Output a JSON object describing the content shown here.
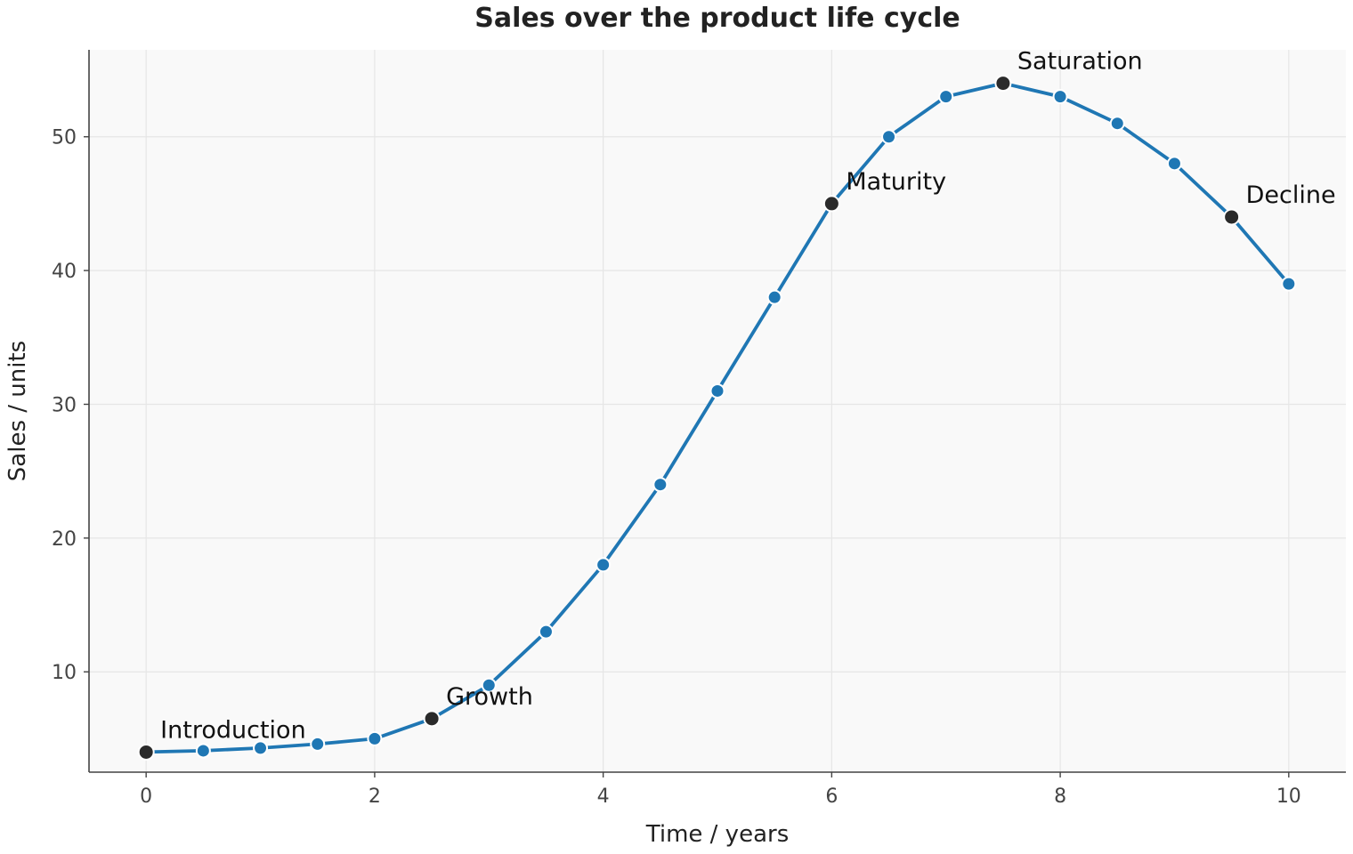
{
  "chart_data": {
    "type": "line",
    "title": "Sales over the product life cycle",
    "xlabel": "Time / years",
    "ylabel": "Sales / units",
    "xlim": [
      -0.5,
      10.5
    ],
    "ylim": [
      2.5,
      56.5
    ],
    "xticks": [
      0,
      2,
      4,
      6,
      8,
      10
    ],
    "yticks": [
      10,
      20,
      30,
      40,
      50
    ],
    "grid": true,
    "line_color": "#1f77b4",
    "highlight_color": "#2b2b2b",
    "series": [
      {
        "x": [
          0,
          0.5,
          1,
          1.5,
          2,
          2.5,
          3,
          3.5,
          4,
          4.5,
          5,
          5.5,
          6,
          6.5,
          7,
          7.5,
          8,
          8.5,
          9,
          9.5,
          10
        ],
        "y": [
          4.0,
          4.1,
          4.3,
          4.6,
          5.0,
          6.5,
          9.0,
          13.0,
          18.0,
          24.0,
          31.0,
          38.0,
          45.0,
          50.0,
          53.0,
          54.0,
          53.0,
          51.0,
          48.0,
          44.0,
          39.0
        ]
      }
    ],
    "annotations": [
      {
        "label": "Introduction",
        "x": 0,
        "y": 4.0
      },
      {
        "label": "Growth",
        "x": 2.5,
        "y": 6.5
      },
      {
        "label": "Maturity",
        "x": 6,
        "y": 45.0
      },
      {
        "label": "Saturation",
        "x": 7.5,
        "y": 54.0
      },
      {
        "label": "Decline",
        "x": 9.5,
        "y": 44.0
      }
    ]
  }
}
